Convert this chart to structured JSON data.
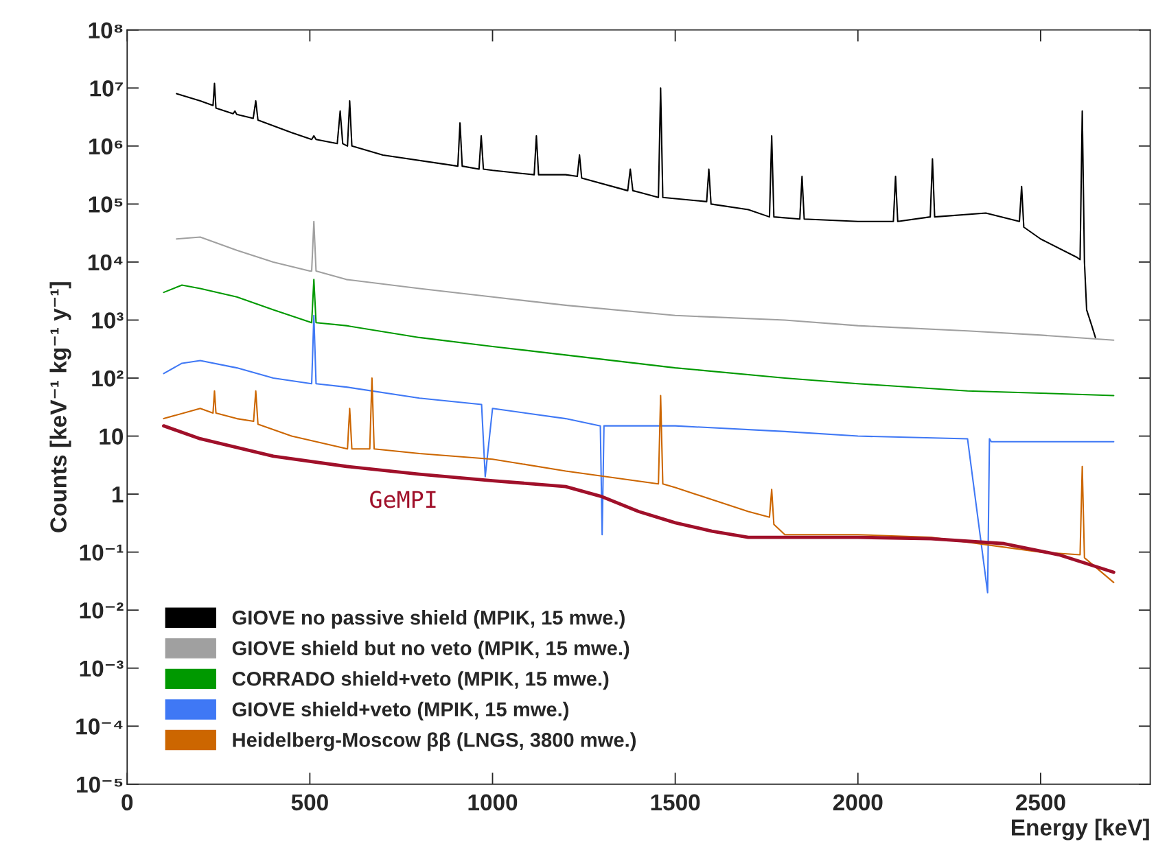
{
  "chart_data": {
    "type": "line",
    "xlabel": "Energy [keV]",
    "ylabel": "Counts [keV⁻¹ kg⁻¹ y⁻¹]",
    "log": "y",
    "xlim": [
      0,
      2800
    ],
    "xticks": [
      0,
      500,
      1000,
      1500,
      2000,
      2500
    ],
    "ylim": [
      1e-05,
      100000000.0
    ],
    "yticks": [
      {
        "value": 1e-05,
        "label": "10⁻⁵"
      },
      {
        "value": 0.0001,
        "label": "10⁻⁴"
      },
      {
        "value": 0.001,
        "label": "10⁻³"
      },
      {
        "value": 0.01,
        "label": "10⁻²"
      },
      {
        "value": 0.1,
        "label": "10⁻¹"
      },
      {
        "value": 1,
        "label": "1"
      },
      {
        "value": 10,
        "label": "10"
      },
      {
        "value": 100,
        "label": "10²"
      },
      {
        "value": 1000,
        "label": "10³"
      },
      {
        "value": 10000.0,
        "label": "10⁴"
      },
      {
        "value": 100000.0,
        "label": "10⁵"
      },
      {
        "value": 1000000.0,
        "label": "10⁶"
      },
      {
        "value": 10000000.0,
        "label": "10⁷"
      },
      {
        "value": 100000000.0,
        "label": "10⁸"
      }
    ],
    "grid": false,
    "legend": "bottom left",
    "line_style": "solid",
    "marker": "none",
    "series": [
      {
        "name": "GIOVE no passive shield (MPIK, 15 mwe.)",
        "color": "#000000",
        "x": [
          135,
          200,
          235,
          239,
          243,
          290,
          295,
          300,
          345,
          352,
          358,
          450,
          505,
          511,
          517,
          575,
          583,
          590,
          603,
          609,
          615,
          700,
          905,
          911,
          917,
          963,
          969,
          975,
          1000,
          1114,
          1120,
          1126,
          1200,
          1232,
          1238,
          1244,
          1370,
          1377,
          1384,
          1400,
          1454,
          1460,
          1466,
          1586,
          1592,
          1598,
          1700,
          1758,
          1764,
          1770,
          1841,
          1847,
          1853,
          2000,
          2097,
          2103,
          2109,
          2198,
          2204,
          2210,
          2350,
          2442,
          2448,
          2454,
          2500,
          2600,
          2608,
          2614,
          2620,
          2626,
          2640,
          2650
        ],
        "values": [
          8000000.0,
          6000000.0,
          5000000.0,
          12000000.0,
          4500000.0,
          3600000.0,
          4000000.0,
          3500000.0,
          3000000.0,
          6000000.0,
          2800000.0,
          1700000.0,
          1300000.0,
          1500000.0,
          1300000.0,
          1100000.0,
          4000000.0,
          1100000.0,
          1000000.0,
          6000000.0,
          1000000.0,
          700000.0,
          450000.0,
          2500000.0,
          450000.0,
          400000.0,
          1500000.0,
          400000.0,
          380000.0,
          320000.0,
          1500000.0,
          320000.0,
          320000.0,
          300000.0,
          700000.0,
          280000.0,
          170000.0,
          400000.0,
          170000.0,
          160000.0,
          130000.0,
          10000000.0,
          130000.0,
          110000.0,
          400000.0,
          100000.0,
          80000.0,
          60000.0,
          1500000.0,
          60000.0,
          55000.0,
          300000.0,
          55000.0,
          50000.0,
          50000.0,
          300000.0,
          50000.0,
          60000.0,
          600000.0,
          60000.0,
          70000.0,
          50000.0,
          200000.0,
          40000.0,
          25000.0,
          12000.0,
          11000.0,
          4000000.0,
          10000.0,
          1500.0,
          800,
          500
        ]
      },
      {
        "name": "GIOVE shield but no veto (MPIK, 15 mwe.)",
        "color": "#a0a0a0",
        "x": [
          135,
          200,
          300,
          400,
          500,
          505,
          511,
          517,
          600,
          800,
          1000,
          1200,
          1500,
          1800,
          2000,
          2300,
          2500,
          2700
        ],
        "values": [
          25000.0,
          27000.0,
          16000.0,
          10000.0,
          7000.0,
          7000.0,
          50000.0,
          7000.0,
          5000.0,
          3500.0,
          2500.0,
          1800.0,
          1200.0,
          1000.0,
          800,
          650,
          550,
          450
        ]
      },
      {
        "name": "CORRADO shield+veto (MPIK, 15 mwe.)",
        "color": "#009900",
        "x": [
          100,
          150,
          200,
          300,
          400,
          505,
          511,
          517,
          600,
          800,
          1000,
          1200,
          1500,
          1800,
          2000,
          2300,
          2500,
          2700
        ],
        "values": [
          3000.0,
          4000.0,
          3500.0,
          2500.0,
          1500.0,
          900,
          5000.0,
          900,
          800,
          500,
          350,
          250,
          150,
          100,
          80,
          60,
          55,
          50
        ]
      },
      {
        "name": "GIOVE shield+veto (MPIK, 15 mwe.)",
        "color": "#3f78f5",
        "x": [
          100,
          150,
          200,
          300,
          400,
          505,
          511,
          517,
          600,
          800,
          970,
          980,
          1000,
          1200,
          1295,
          1300,
          1305,
          1500,
          1800,
          2000,
          2300,
          2355,
          2360,
          2365,
          2500,
          2700
        ],
        "values": [
          120,
          180,
          200,
          150,
          100,
          80,
          1200,
          80,
          70,
          45,
          35,
          2,
          30,
          20,
          15,
          0.2,
          15,
          15,
          12,
          10,
          9,
          0.02,
          9,
          8,
          8,
          8
        ]
      },
      {
        "name": "Heidelberg-Moscow ββ (LNGS, 3800 mwe.)",
        "color": "#cc6600",
        "x": [
          100,
          200,
          235,
          239,
          243,
          300,
          346,
          352,
          358,
          450,
          603,
          609,
          615,
          664,
          670,
          676,
          800,
          1000,
          1200,
          1454,
          1460,
          1466,
          1500,
          1700,
          1758,
          1764,
          1770,
          1800,
          2000,
          2200,
          2500,
          2608,
          2614,
          2620,
          2700
        ],
        "values": [
          20,
          30,
          25,
          60,
          25,
          20,
          18,
          60,
          16,
          10,
          6,
          30,
          6,
          6,
          100,
          6,
          5,
          4,
          2.5,
          1.5,
          50,
          1.5,
          1.3,
          0.5,
          0.4,
          1.2,
          0.3,
          0.2,
          0.2,
          0.18,
          0.1,
          0.09,
          3,
          0.08,
          0.03
        ]
      },
      {
        "color": "#a0102a",
        "x": [
          100,
          200,
          400,
          600,
          800,
          1000,
          1200,
          1300,
          1400,
          1500,
          1600,
          1700,
          2000,
          2200,
          2400,
          2550,
          2700
        ],
        "values": [
          15,
          9,
          4.5,
          3,
          2.2,
          1.7,
          1.35,
          0.9,
          0.5,
          0.32,
          0.23,
          0.18,
          0.18,
          0.17,
          0.14,
          0.09,
          0.045
        ]
      }
    ],
    "annotations": [
      "GeMPI"
    ]
  }
}
